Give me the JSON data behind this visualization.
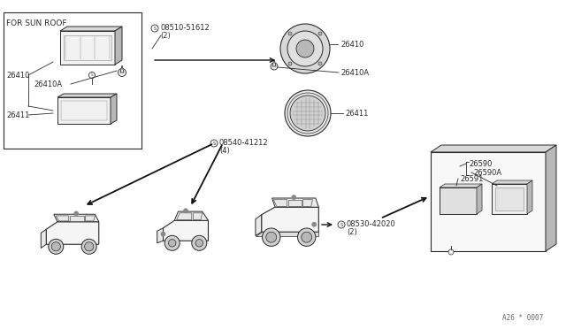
{
  "bg_color": "#ffffff",
  "line_color": "#333333",
  "labels": {
    "for_sun_roof": "FOR SUN ROOF",
    "p26410": "26410",
    "p26410A_1": "26410A",
    "p26410A_2": "26410A",
    "p26410_r": "26410",
    "p26411_l": "26411",
    "p26411_r": "26411",
    "p08510": "08510-51612",
    "p08510b": "(2)",
    "p08540": "08540-41212",
    "p08540b": "(4)",
    "p08530": "08530-42020",
    "p08530b": "(2)",
    "p26590": "26590",
    "p26590A": "26590A",
    "p26591": "26591",
    "watermark": "A26 * 0007"
  },
  "colors": {
    "outline": "#2a2a2a",
    "fill_light": "#f0f0f0",
    "fill_medium": "#d8d8d8",
    "fill_dark": "#b8b8b8",
    "arrow": "#111111"
  }
}
